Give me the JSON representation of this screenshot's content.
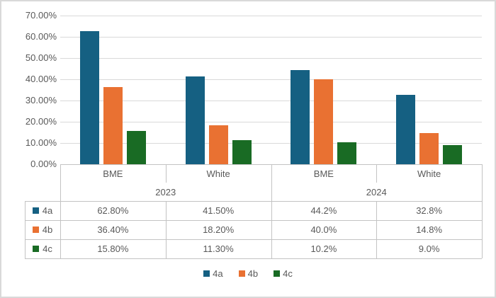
{
  "chart_data": {
    "type": "bar",
    "title": "",
    "categories": [
      "BME",
      "White",
      "BME",
      "White"
    ],
    "year_groups": [
      {
        "label": "2023",
        "span": 2
      },
      {
        "label": "2024",
        "span": 2
      }
    ],
    "series": [
      {
        "name": "4a",
        "color": "#156082",
        "values": [
          62.8,
          41.5,
          44.2,
          32.8
        ],
        "display_values": [
          "62.80%",
          "41.50%",
          "44.2%",
          "32.8%"
        ]
      },
      {
        "name": "4b",
        "color": "#E97132",
        "values": [
          36.4,
          18.2,
          40.0,
          14.8
        ],
        "display_values": [
          "36.40%",
          "18.20%",
          "40.0%",
          "14.8%"
        ]
      },
      {
        "name": "4c",
        "color": "#196B24",
        "values": [
          15.8,
          11.3,
          10.2,
          9.0
        ],
        "display_values": [
          "15.80%",
          "11.30%",
          "10.2%",
          "9.0%"
        ]
      }
    ],
    "y_axis": {
      "min": 0,
      "max": 70,
      "step": 10,
      "tick_labels": [
        "0.00%",
        "10.00%",
        "20.00%",
        "30.00%",
        "40.00%",
        "50.00%",
        "60.00%",
        "70.00%"
      ]
    },
    "legend": {
      "items": [
        "4a",
        "4b",
        "4c"
      ],
      "position": "bottom"
    },
    "grid": true,
    "has_data_table": true,
    "colors": {
      "text": "#595959",
      "gridline": "#d9d9d9",
      "table_border": "#c3c3c3"
    }
  }
}
